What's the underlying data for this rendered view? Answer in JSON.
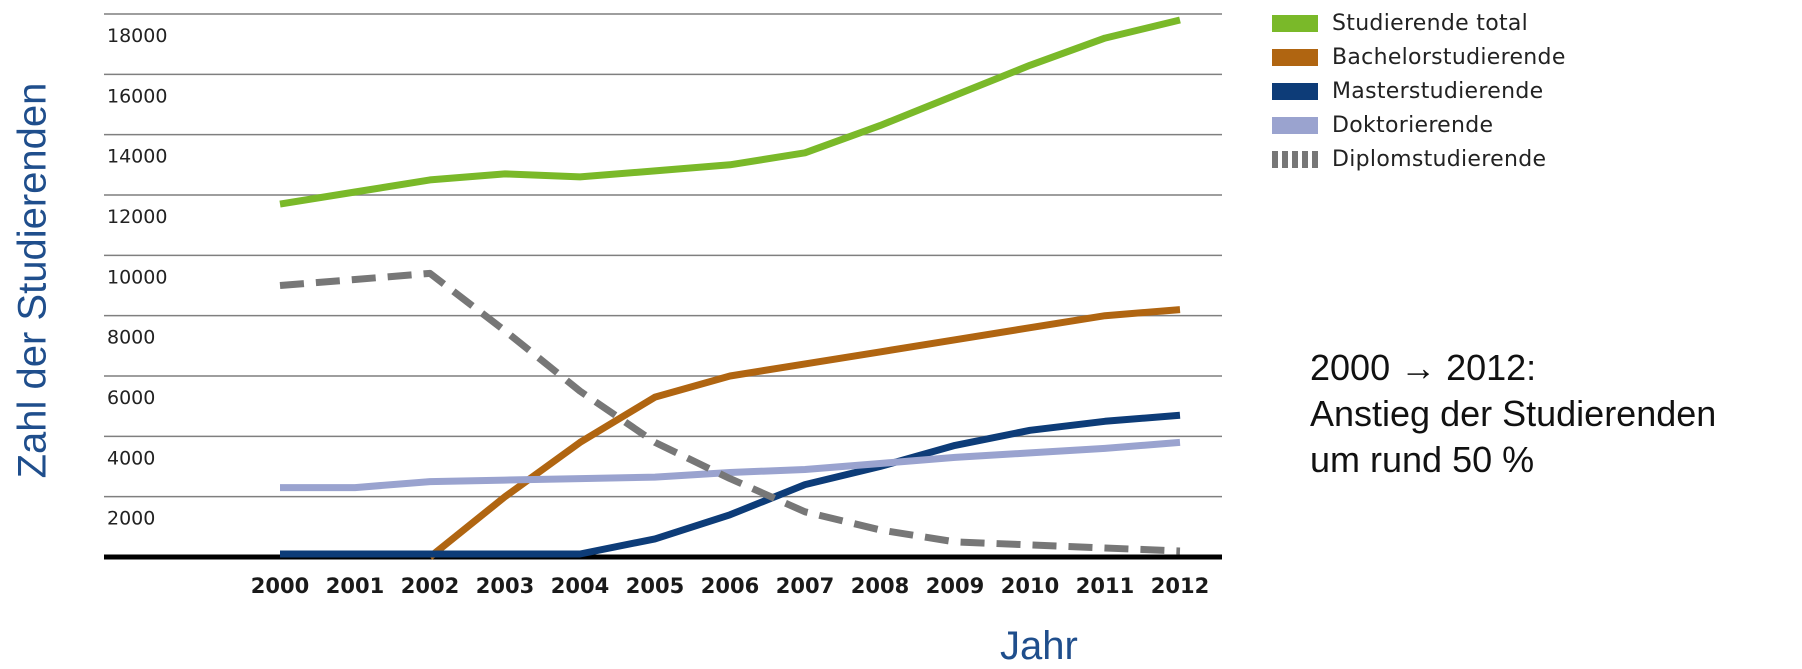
{
  "chart_data": {
    "type": "line",
    "xlabel": "Jahr",
    "ylabel": "Zahl der Studierenden",
    "x": [
      "2000",
      "2001",
      "2002",
      "2003",
      "2004",
      "2005",
      "2006",
      "2007",
      "2008",
      "2009",
      "2010",
      "2011",
      "2012"
    ],
    "ylim": [
      0,
      18000
    ],
    "yticks": [
      {
        "value": 2000,
        "label": "2000"
      },
      {
        "value": 4000,
        "label": "4000"
      },
      {
        "value": 6000,
        "label": "6000"
      },
      {
        "value": 8000,
        "label": "8000"
      },
      {
        "value": 10000,
        "label": "10000"
      },
      {
        "value": 12000,
        "label": "12000"
      },
      {
        "value": 14000,
        "label": "14000"
      },
      {
        "value": 16000,
        "label": "16000"
      },
      {
        "value": 18000,
        "label": "18000"
      }
    ],
    "grid": true,
    "legend_position": "top-right",
    "series": [
      {
        "name": "Studierende total",
        "color": "#7ab929",
        "style": "solid",
        "values": [
          11700,
          12100,
          12500,
          12700,
          12600,
          12800,
          13000,
          13400,
          14300,
          15300,
          16300,
          17200,
          17800
        ]
      },
      {
        "name": "Bachelorstudierende",
        "color": "#b06511",
        "style": "solid",
        "values": [
          null,
          null,
          0,
          2000,
          3800,
          5300,
          6000,
          6400,
          6800,
          7200,
          7600,
          8000,
          8200
        ]
      },
      {
        "name": "Masterstudierende",
        "color": "#0d3c78",
        "style": "solid",
        "values": [
          100,
          100,
          100,
          100,
          100,
          600,
          1400,
          2400,
          3000,
          3700,
          4200,
          4500,
          4700
        ]
      },
      {
        "name": "Doktorierende",
        "color": "#9aa3cf",
        "style": "solid",
        "values": [
          2300,
          2300,
          2500,
          2550,
          2600,
          2650,
          2800,
          2900,
          3100,
          3300,
          3450,
          3600,
          3800
        ]
      },
      {
        "name": "Diplomstudierende",
        "color": "#777777",
        "style": "dashed",
        "values": [
          9000,
          9200,
          9400,
          7500,
          5500,
          3800,
          2600,
          1500,
          900,
          500,
          400,
          300,
          200
        ]
      }
    ]
  },
  "annotation": {
    "line1": "2000 →  2012:",
    "line2": "Anstieg der Studierenden",
    "line3": "um rund 50 %"
  }
}
